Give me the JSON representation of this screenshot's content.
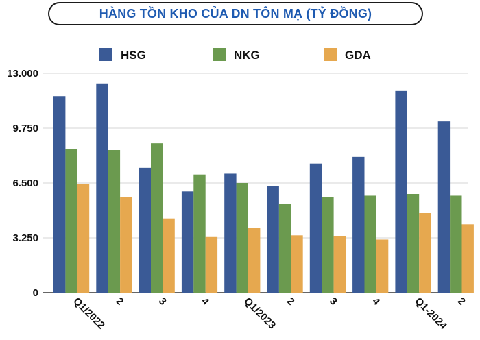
{
  "chart_data": {
    "type": "bar",
    "title": "HÀNG TỒN KHO CỦA DN TÔN MẠ (TỶ ĐỒNG)",
    "categories": [
      "Q1/2022",
      "2",
      "3",
      "4",
      "Q1/2023",
      "2",
      "3",
      "4",
      "Q1-2024",
      "2"
    ],
    "series": [
      {
        "name": "HSG",
        "color": "#3a5a96",
        "values": [
          11650,
          12400,
          7400,
          6000,
          7050,
          6300,
          7650,
          8050,
          11950,
          10150
        ]
      },
      {
        "name": "NKG",
        "color": "#6b9a4f",
        "values": [
          8500,
          8450,
          8850,
          7000,
          6500,
          5250,
          5650,
          5750,
          5850,
          5750
        ]
      },
      {
        "name": "GDA",
        "color": "#e6a84f",
        "values": [
          6450,
          5650,
          4400,
          3300,
          3850,
          3400,
          3350,
          3150,
          4750,
          4050
        ]
      }
    ],
    "yticks": [
      "13.000",
      "9.750",
      "6.500",
      "3.250",
      "0"
    ],
    "ytick_values": [
      13000,
      9750,
      6500,
      3250,
      0
    ],
    "ylim": [
      0,
      13000
    ],
    "xlabel": "",
    "ylabel": "",
    "grid": true,
    "legend_position": "top"
  }
}
